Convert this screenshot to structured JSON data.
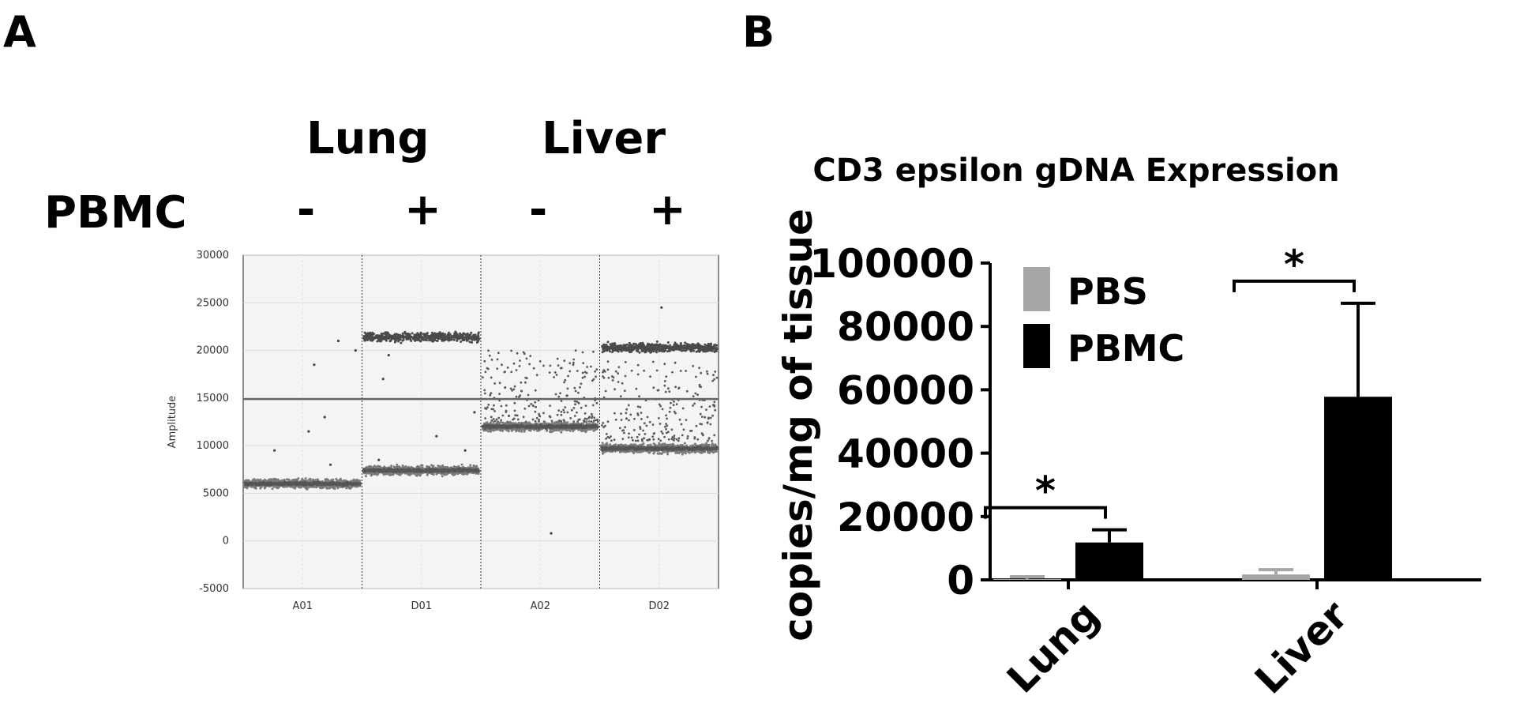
{
  "panel_a": {
    "letter": "A",
    "group_labels": [
      "Lung",
      "Liver"
    ],
    "row_label": "PBMC",
    "signs": [
      "-",
      "+",
      "-",
      "+"
    ]
  },
  "panel_b": {
    "letter": "B"
  },
  "chart_data": [
    {
      "type": "scatter",
      "title": "",
      "ylabel": "Amplitude",
      "xlabel": "",
      "ylim": [
        -5000,
        30000
      ],
      "yticks": [
        30000,
        25000,
        20000,
        15000,
        10000,
        5000,
        0,
        -5000
      ],
      "wells": [
        "A01",
        "D01",
        "A02",
        "D02"
      ],
      "threshold": 14900,
      "grid": true,
      "clusters": [
        {
          "well": "A01",
          "negative_band": 6000,
          "positive_band": null,
          "scattered_points": [
            21000,
            20000,
            18500,
            13000,
            11500,
            9500,
            8000
          ]
        },
        {
          "well": "D01",
          "negative_band": 7400,
          "positive_band": 21400,
          "scattered_points": [
            19500,
            17000,
            13500,
            11000,
            9500,
            8500
          ]
        },
        {
          "well": "A02",
          "negative_band": 12000,
          "positive_band": null,
          "rain_range": [
            12500,
            20000
          ],
          "scattered_points": [
            800
          ]
        },
        {
          "well": "D02",
          "negative_band": 9700,
          "positive_band": 20300,
          "rain_range": [
            10500,
            19000
          ],
          "scattered_points": [
            24500
          ]
        }
      ]
    },
    {
      "type": "bar",
      "title": "CD3 epsilon gDNA Expression",
      "xlabel": "",
      "ylabel": "copies/mg of tissue",
      "categories": [
        "Lung",
        "Liver"
      ],
      "ylim": [
        0,
        100000
      ],
      "yticks": [
        0,
        20000,
        40000,
        60000,
        80000,
        100000
      ],
      "series": [
        {
          "name": "PBS",
          "color": "#a6a6a8",
          "values": [
            300,
            1700
          ],
          "errors": [
            700,
            1500
          ]
        },
        {
          "name": "PBMC",
          "color": "#000000",
          "values": [
            11800,
            57800
          ],
          "errors": [
            4000,
            29500
          ]
        }
      ],
      "legend": "top-left",
      "significance": [
        {
          "category": "Lung",
          "label": "*"
        },
        {
          "category": "Liver",
          "label": "*"
        }
      ]
    }
  ]
}
